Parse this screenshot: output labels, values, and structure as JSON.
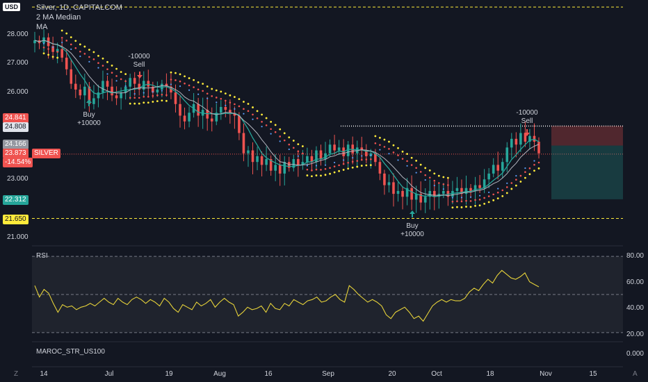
{
  "header": {
    "currency": "USD",
    "symbol_title": "Silver, 1D, CAPITALCOM",
    "indicator_1": "2 MA Median",
    "indicator_2": "MA"
  },
  "price_labels": {
    "red_top": "24.841",
    "white_top": "24.808",
    "grey": "24.166",
    "current": "23.873",
    "current_name": "SILVER",
    "change": "-14.54%",
    "teal": "22.312",
    "yellow": "21.650"
  },
  "annotations": {
    "sell_1": [
      "-10000",
      "Sell"
    ],
    "buy_1": [
      "Buy",
      "+10000"
    ],
    "buy_2": [
      "Buy",
      "+10000"
    ],
    "sell_2": [
      "-10000",
      "Sell"
    ]
  },
  "rsi_pane": {
    "title": "RSI",
    "ticks": [
      "80.00",
      "60.00",
      "40.00",
      "20.00"
    ]
  },
  "bottom_pane": {
    "title": "MAROC_STR_US100",
    "tick": "0.000"
  },
  "corners": {
    "left": "Z",
    "right": "A"
  },
  "colors": {
    "bull": "#26a69a",
    "bear": "#ef5350",
    "dots": "#ffeb3b",
    "rsi": "#e6d23a"
  },
  "chart_data": {
    "type": "candlestick",
    "title": "Silver, 1D, CAPITALCOM",
    "ylim": [
      20.8,
      29.0
    ],
    "yticks": [
      21.0,
      22.0,
      23.0,
      24.0,
      25.0,
      26.0,
      27.0,
      28.0
    ],
    "ytick_labels": [
      "21.000",
      "",
      "23.000",
      "",
      "",
      "26.000",
      "27.000",
      "28.000"
    ],
    "x_labels": [
      "14",
      "Jul",
      "19",
      "Aug",
      "16",
      "Sep",
      "20",
      "Oct",
      "18",
      "Nov",
      "15"
    ],
    "closes": [
      27.8,
      27.7,
      27.9,
      27.6,
      27.4,
      27.5,
      27.2,
      26.8,
      26.3,
      26.1,
      25.9,
      26.2,
      25.6,
      25.8,
      26.0,
      26.4,
      26.2,
      25.9,
      25.8,
      26.0,
      26.2,
      26.5,
      26.3,
      26.1,
      26.4,
      26.2,
      26.0,
      26.1,
      26.3,
      26.2,
      26.0,
      25.6,
      25.2,
      25.0,
      25.3,
      25.6,
      25.2,
      25.4,
      25.1,
      25.0,
      25.3,
      25.5,
      25.4,
      25.3,
      25.2,
      24.6,
      23.9,
      24.0,
      23.6,
      23.8,
      23.5,
      23.7,
      23.3,
      23.5,
      23.2,
      23.6,
      23.4,
      23.7,
      23.5,
      23.6,
      23.8,
      23.6,
      24.0,
      23.7,
      23.9,
      24.2,
      24.0,
      24.1,
      23.8,
      24.2,
      23.9,
      24.1,
      24.0,
      23.8,
      23.9,
      23.6,
      23.2,
      22.8,
      22.9,
      22.5,
      22.6,
      22.4,
      22.7,
      22.3,
      22.5,
      22.2,
      22.4,
      22.6,
      22.4,
      22.5,
      22.6,
      22.4,
      22.6,
      22.7,
      22.5,
      22.7,
      22.6,
      22.8,
      22.7,
      23.0,
      23.2,
      23.5,
      23.3,
      23.6,
      24.1,
      24.4,
      24.2,
      24.6,
      24.3,
      24.5,
      24.3,
      23.9
    ],
    "markers": [
      {
        "type": "Sell",
        "label": "-10000"
      },
      {
        "type": "Buy",
        "label": "+10000"
      },
      {
        "type": "Buy",
        "label": "+10000"
      },
      {
        "type": "Sell",
        "label": "-10000"
      }
    ],
    "horizontal_levels": [
      28.95,
      21.65,
      24.841,
      23.873,
      22.312
    ],
    "rsi": {
      "ylim": [
        15,
        85
      ],
      "levels": [
        80,
        50,
        20
      ],
      "values": [
        57,
        48,
        54,
        51,
        43,
        36,
        42,
        40,
        41,
        38,
        40,
        41,
        43,
        41,
        44,
        47,
        44,
        42,
        47,
        44,
        42,
        46,
        48,
        46,
        43,
        46,
        44,
        41,
        47,
        44,
        39,
        36,
        42,
        40,
        38,
        44,
        41,
        43,
        46,
        40,
        44,
        47,
        44,
        42,
        33,
        36,
        40,
        38,
        39,
        41,
        36,
        43,
        39,
        38,
        43,
        41,
        46,
        44,
        42,
        45,
        46,
        48,
        44,
        45,
        48,
        50,
        46,
        44,
        57,
        54,
        50,
        47,
        44,
        46,
        44,
        41,
        34,
        31,
        36,
        38,
        40,
        36,
        31,
        33,
        29,
        35,
        41,
        44,
        46,
        44,
        46,
        45,
        45,
        47,
        52,
        55,
        53,
        58,
        62,
        59,
        65,
        69,
        66,
        63,
        62,
        64,
        67,
        60,
        58,
        56
      ]
    }
  }
}
